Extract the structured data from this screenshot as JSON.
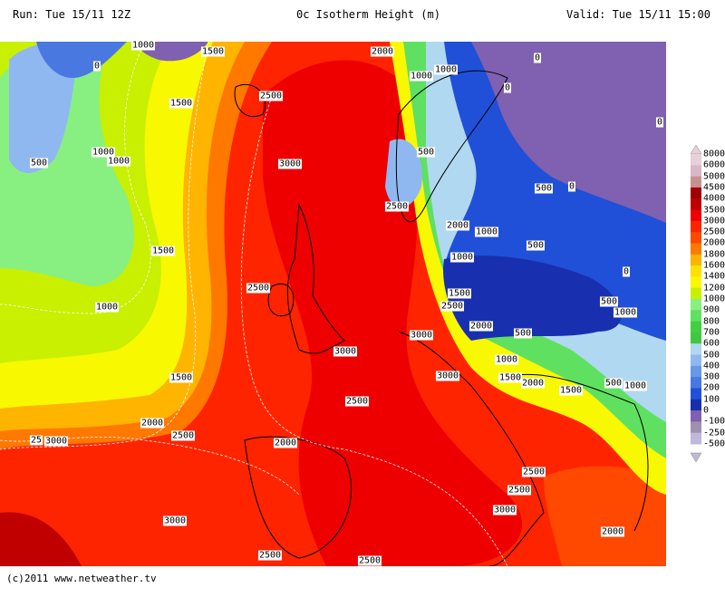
{
  "header": {
    "run": "Run: Tue 15/11 12Z",
    "title": "0c Isotherm Height (m)",
    "valid": "Valid: Tue 15/11 15:00"
  },
  "footer": {
    "copyright": "(c)2011 www.netweather.tv"
  },
  "legend": {
    "labels": [
      "8000",
      "6000",
      "5000",
      "4500",
      "4000",
      "3500",
      "3000",
      "2500",
      "2000",
      "1800",
      "1600",
      "1400",
      "1200",
      "1000",
      "900",
      "800",
      "700",
      "600",
      "500",
      "400",
      "300",
      "200",
      "100",
      "0",
      "-100",
      "-250",
      "-500"
    ],
    "colors": [
      "#e8d0d8",
      "#d8b8c8",
      "#c89090",
      "#a00000",
      "#c00000",
      "#ee0000",
      "#ff2400",
      "#ff4800",
      "#ff7800",
      "#ffb400",
      "#ffe000",
      "#f8f800",
      "#c8f000",
      "#88f080",
      "#60e060",
      "#40d040",
      "#40c840",
      "#b0d8f0",
      "#90b8f0",
      "#6898e8",
      "#4878e0",
      "#2050d8",
      "#1830b0",
      "#8060b0",
      "#a090b0",
      "#c0b8d8"
    ]
  },
  "contour_labels": [
    "1000",
    "1500",
    "2000",
    "0",
    "1000",
    "1000",
    "0",
    "0",
    "2500",
    "1500",
    "0",
    "3000",
    "1000",
    "1000",
    "500",
    "500",
    "500",
    "0",
    "2500",
    "2000",
    "1000",
    "500",
    "1500",
    "1000",
    "0",
    "2500",
    "1000",
    "1500",
    "2500",
    "500",
    "1000",
    "3000",
    "2000",
    "500",
    "3000",
    "1000",
    "3000",
    "1500",
    "2000",
    "1500",
    "1500",
    "500",
    "1000",
    "2500",
    "2000",
    "2500",
    "25",
    "3000",
    "2000",
    "2500",
    "2500",
    "3000",
    "3000",
    "2000",
    "2500",
    "2500"
  ]
}
